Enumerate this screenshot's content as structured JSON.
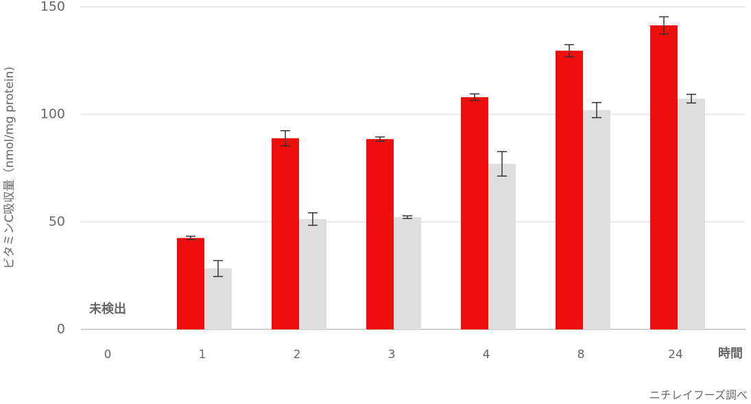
{
  "chart_data": {
    "type": "bar",
    "y_label": "ビタミンC吸収量（nmol/mg protein)",
    "x_label": "時間",
    "annotation": "未検出",
    "source": "ニチレイフーズ調べ",
    "categories": [
      "0",
      "1",
      "2",
      "3",
      "4",
      "8",
      "24"
    ],
    "series": [
      {
        "color": "#ee0e0e",
        "values": [
          null,
          42.5,
          88.9,
          88.5,
          108,
          129.6,
          141.4
        ],
        "errors": [
          null,
          0.8,
          3.5,
          1,
          1.5,
          2.8,
          4
        ]
      },
      {
        "color": "#dedede",
        "values": [
          null,
          28.3,
          51.3,
          52.2,
          77,
          102,
          107.3
        ],
        "errors": [
          null,
          3.7,
          2.9,
          0.6,
          5.7,
          3.5,
          2
        ]
      }
    ],
    "ylim": [
      0,
      150
    ],
    "yticks": [
      0,
      50,
      100,
      150
    ],
    "grid": true
  }
}
